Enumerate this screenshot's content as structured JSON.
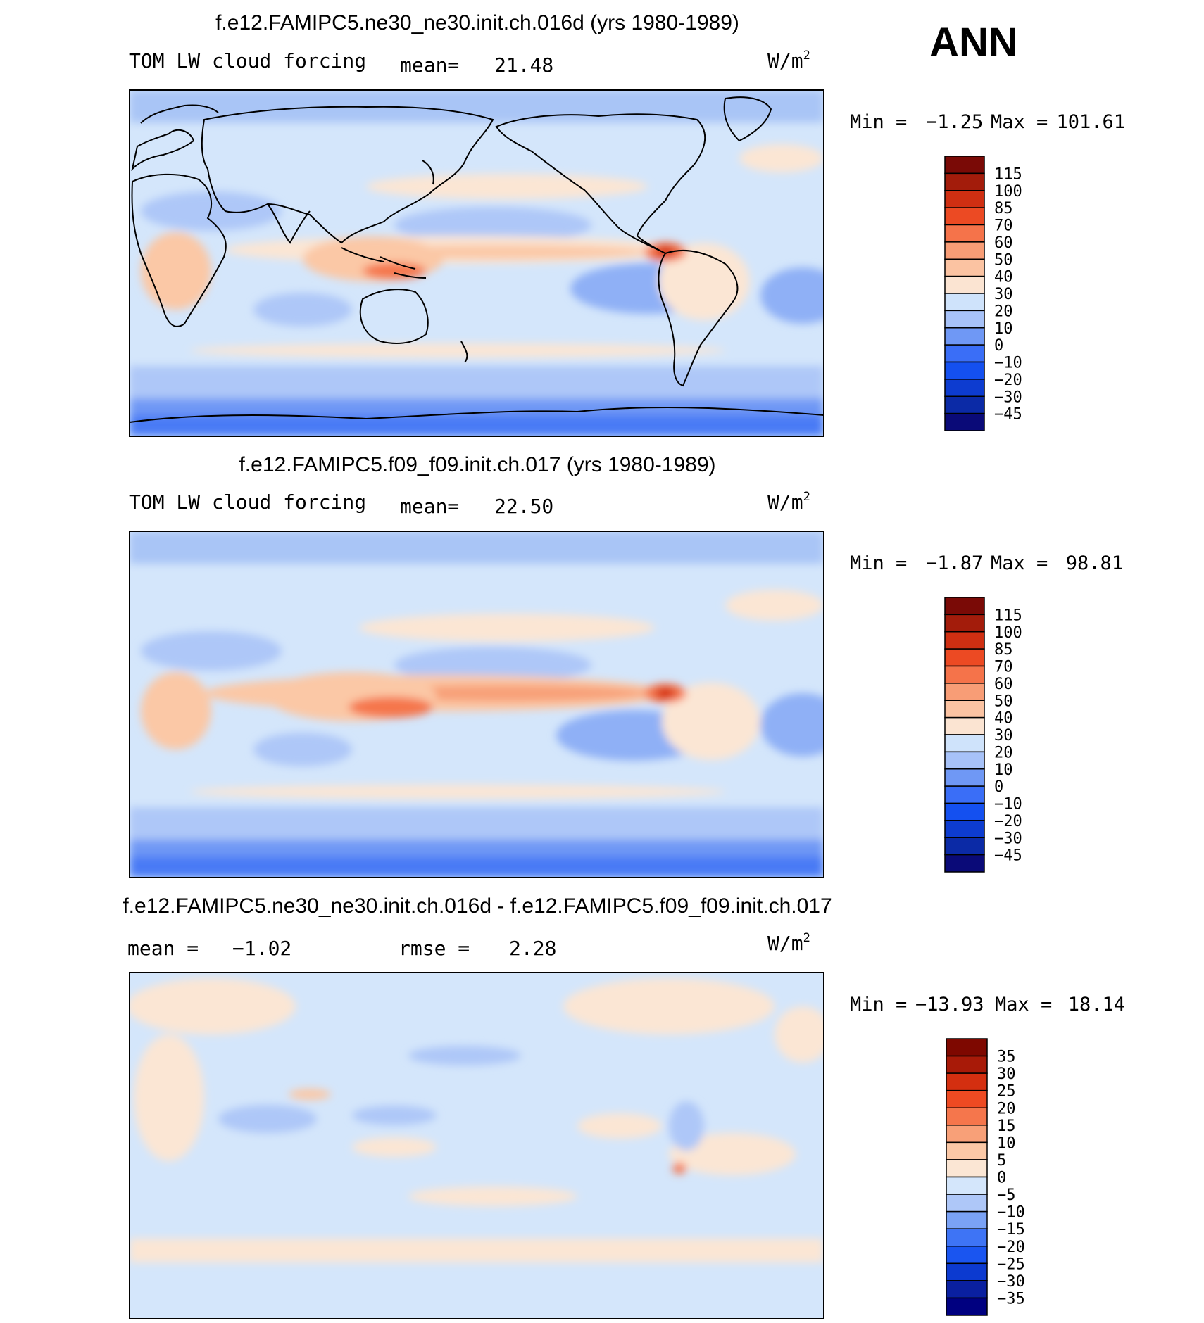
{
  "season": "ANN",
  "colorbar_colors": {
    "abs": [
      "#0a0a78",
      "#0b2aa6",
      "#0d3cd0",
      "#1450f0",
      "#3a6ef7",
      "#6f98f5",
      "#a7c2f8",
      "#cfe3fb",
      "#fbe4d2",
      "#fbc3a2",
      "#f89d76",
      "#f5734a",
      "#ec4a23",
      "#cf2f12",
      "#a31c0b",
      "#7a0a06"
    ],
    "diff": [
      "#000080",
      "#0a20a0",
      "#0c3ad0",
      "#1a55f0",
      "#3e74f5",
      "#7aa2f5",
      "#aec7f8",
      "#d4e6fb",
      "#fbe6d4",
      "#fbc8a6",
      "#f8a078",
      "#f5764c",
      "#ee4a22",
      "#d42f10",
      "#a81a08",
      "#7e0800"
    ]
  },
  "panels": [
    {
      "id": "ne30",
      "title": "f.e12.FAMIPC5.ne30_ne30.init.ch.016d (yrs 1980-1989)",
      "variable": "TOM LW cloud forcing",
      "stat1_label": "mean=",
      "stat1_value": "21.48",
      "stat2_label": "",
      "stat2_value": "",
      "units_base": "W/m",
      "units_exp": "2",
      "min_label": "Min =",
      "min_value": "−1.25",
      "max_label": "Max =",
      "max_value": "101.61",
      "colorbar": "abs",
      "levels": [
        "115",
        "100",
        "85",
        "70",
        "60",
        "50",
        "40",
        "30",
        "20",
        "10",
        "0",
        "−10",
        "−20",
        "−30",
        "−45"
      ]
    },
    {
      "id": "f09",
      "title": "f.e12.FAMIPC5.f09_f09.init.ch.017 (yrs 1980-1989)",
      "variable": "TOM LW cloud forcing",
      "stat1_label": "mean=",
      "stat1_value": "22.50",
      "stat2_label": "",
      "stat2_value": "",
      "units_base": "W/m",
      "units_exp": "2",
      "min_label": "Min =",
      "min_value": "−1.87",
      "max_label": "Max =",
      "max_value": "98.81",
      "colorbar": "abs",
      "levels": [
        "115",
        "100",
        "85",
        "70",
        "60",
        "50",
        "40",
        "30",
        "20",
        "10",
        "0",
        "−10",
        "−20",
        "−30",
        "−45"
      ]
    },
    {
      "id": "diff",
      "title": "f.e12.FAMIPC5.ne30_ne30.init.ch.016d - f.e12.FAMIPC5.f09_f09.init.ch.017",
      "variable": "",
      "stat1_label": "mean =",
      "stat1_value": "−1.02",
      "stat2_label": "rmse =",
      "stat2_value": "2.28",
      "units_base": "W/m",
      "units_exp": "2",
      "min_label": "Min =",
      "min_value": "−13.93",
      "max_label": "Max =",
      "max_value": "18.14",
      "colorbar": "diff",
      "levels": [
        "35",
        "30",
        "25",
        "20",
        "15",
        "10",
        "5",
        "0",
        "−5",
        "−10",
        "−15",
        "−20",
        "−25",
        "−30",
        "−35"
      ]
    }
  ]
}
